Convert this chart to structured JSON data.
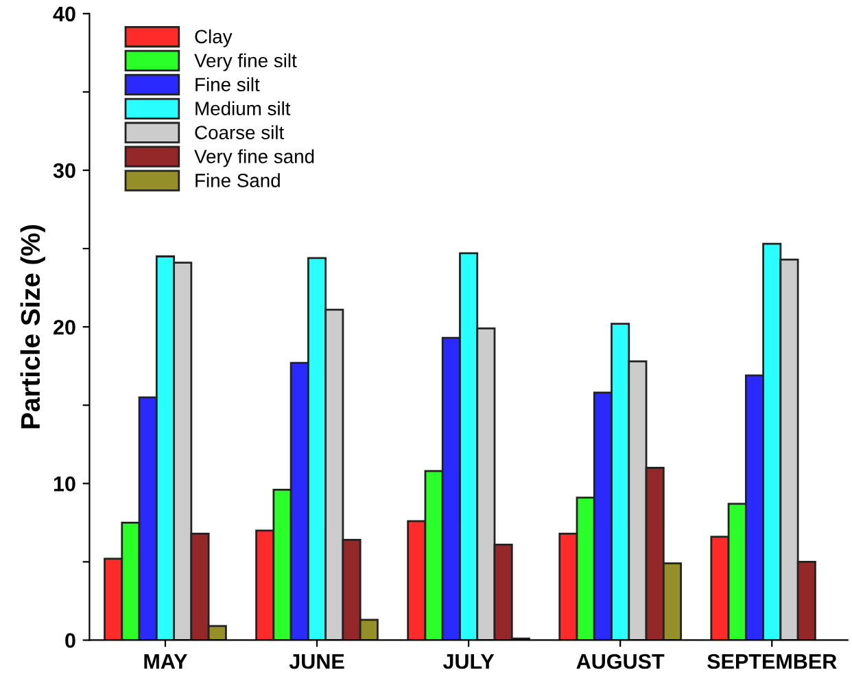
{
  "chart_data": {
    "type": "bar",
    "ylabel": "Particle Size (%)",
    "categories": [
      "MAY",
      "JUNE",
      "JULY",
      "AUGUST",
      "SEPTEMBER"
    ],
    "series": [
      {
        "name": "Clay",
        "color": "#ff2a2a",
        "values": [
          5.2,
          7.0,
          7.6,
          6.8,
          6.6
        ]
      },
      {
        "name": "Very fine silt",
        "color": "#2aff2a",
        "values": [
          7.5,
          9.6,
          10.8,
          9.1,
          8.7
        ]
      },
      {
        "name": "Fine silt",
        "color": "#2a2aff",
        "values": [
          15.5,
          17.7,
          19.3,
          15.8,
          16.9
        ]
      },
      {
        "name": "Medium silt",
        "color": "#2affff",
        "values": [
          24.5,
          24.4,
          24.7,
          20.2,
          25.3
        ]
      },
      {
        "name": "Coarse silt",
        "color": "#cccccc",
        "values": [
          24.1,
          21.1,
          19.9,
          17.8,
          24.3
        ]
      },
      {
        "name": "Very fine sand",
        "color": "#942828",
        "values": [
          6.8,
          6.4,
          6.1,
          11.0,
          5.0
        ]
      },
      {
        "name": "Fine Sand",
        "color": "#948f28",
        "values": [
          0.9,
          1.3,
          0.1,
          4.9,
          null
        ]
      }
    ],
    "ylim": [
      0,
      40
    ],
    "yticks": [
      0,
      {
        "value": 5,
        "label": null
      },
      10,
      {
        "value": 15,
        "label": null
      },
      20,
      {
        "value": 25,
        "label": null
      },
      30,
      {
        "value": 35,
        "label": null
      },
      40
    ],
    "legend": "top left",
    "grid": false
  }
}
